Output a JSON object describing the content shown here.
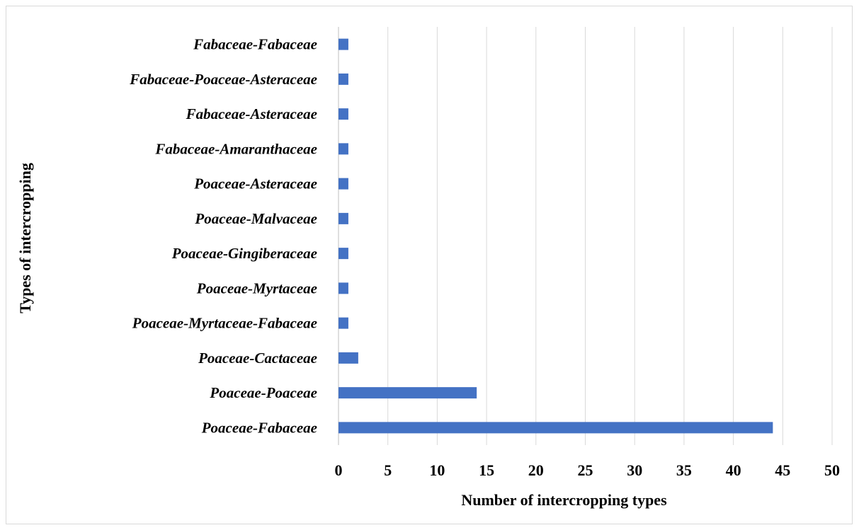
{
  "chart_data": {
    "type": "bar",
    "orientation": "horizontal",
    "xlabel": "Number of intercropping types",
    "ylabel": "Types of intercropping",
    "xlim": [
      0,
      50
    ],
    "x_ticks": [
      "0",
      "5",
      "10",
      "15",
      "20",
      "25",
      "30",
      "35",
      "40",
      "45",
      "50"
    ],
    "grid": "vertical",
    "bar_color": "#4472C4",
    "gridline_color": "#d9d9d9",
    "categories": [
      "Poaceae-Fabaceae",
      "Poaceae-Poaceae",
      "Poaceae-Cactaceae",
      "Poaceae-Myrtaceae-Fabaceae",
      "Poaceae-Myrtaceae",
      "Poaceae-Gingiberaceae",
      "Poaceae-Malvaceae",
      "Poaceae-Asteraceae",
      "Fabaceae-Amaranthaceae",
      "Fabaceae-Asteraceae",
      "Fabaceae-Poaceae-Asteraceae",
      "Fabaceae-Fabaceae"
    ],
    "values": [
      44,
      14,
      2,
      1,
      1,
      1,
      1,
      1,
      1,
      1,
      1,
      1
    ]
  }
}
